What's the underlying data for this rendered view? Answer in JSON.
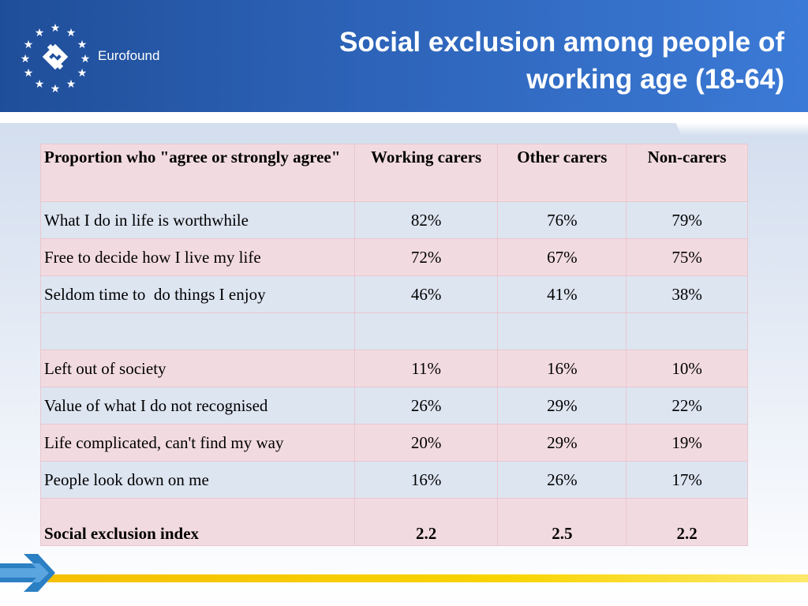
{
  "header": {
    "brand": "Eurofound",
    "title_line1": "Social exclusion among people of",
    "title_line2": "working age (18-64)"
  },
  "table": {
    "columns": [
      "Proportion who \"agree or strongly agree\"",
      "Working carers",
      "Other carers",
      "Non-carers"
    ],
    "rows": [
      {
        "label": "What I do in life is worthwhile",
        "values": [
          "82%",
          "76%",
          "79%"
        ]
      },
      {
        "label": "Free to decide how I live my life",
        "values": [
          "72%",
          "67%",
          "75%"
        ]
      },
      {
        "label": "Seldom time to  do things I enjoy",
        "values": [
          "46%",
          "41%",
          "38%"
        ]
      },
      {
        "label": "",
        "values": [
          "",
          "",
          ""
        ]
      },
      {
        "label": "Left out of society",
        "values": [
          "11%",
          "16%",
          "10%"
        ]
      },
      {
        "label": "Value of what I do not recognised",
        "values": [
          "26%",
          "29%",
          "22%"
        ]
      },
      {
        "label": "Life complicated, can't find my way",
        "values": [
          "20%",
          "29%",
          "19%"
        ]
      },
      {
        "label": "People look down on me",
        "values": [
          "16%",
          "26%",
          "17%"
        ]
      },
      {
        "label": "Social exclusion index",
        "values": [
          "2.2",
          "2.5",
          "2.2"
        ]
      }
    ]
  },
  "colors": {
    "header_blue": "#2d63b8",
    "row_pink": "#f2dbe0",
    "row_blue": "#dde5f1",
    "arrow_blue": "#2b7fc3",
    "bar_yellow": "#f5c000"
  }
}
